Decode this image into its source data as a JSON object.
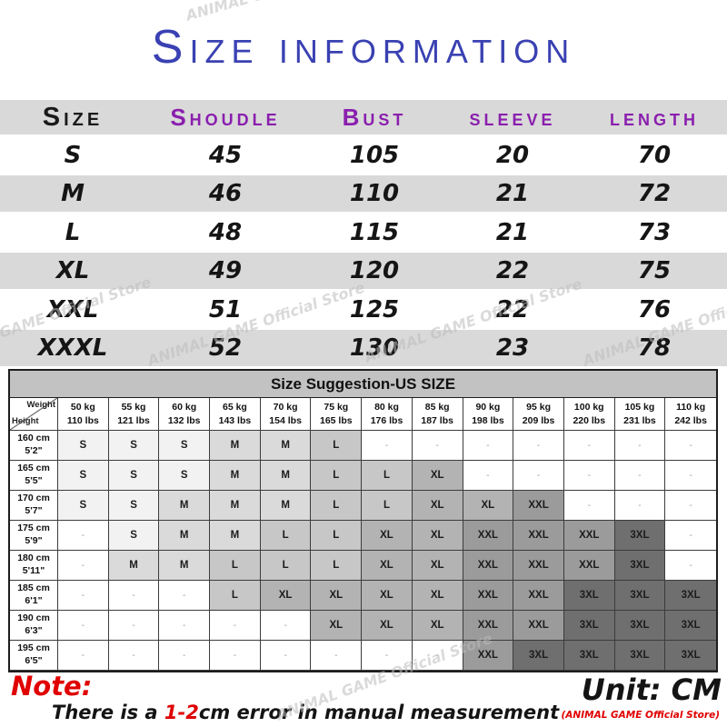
{
  "title": "Size information",
  "watermark_text": "ANIMAL GAME Official Store",
  "colors": {
    "title_blue": "#3a41b2",
    "header_purple": "#8a1fae",
    "note_red": "#e00000",
    "band_gray": "#d9d9d9",
    "size_shades": {
      "S": "#f2f2f2",
      "M": "#dadada",
      "L": "#c7c7c7",
      "XL": "#b3b3b3",
      "XXL": "#9b9b9b",
      "3XL": "#6f6f6f"
    }
  },
  "size_table": {
    "headers": [
      "Size",
      "Shoudle",
      "Bust",
      "sleeve",
      "length"
    ],
    "rows": [
      {
        "size": "S",
        "values": [
          "45",
          "105",
          "20",
          "70"
        ]
      },
      {
        "size": "M",
        "values": [
          "46",
          "110",
          "21",
          "72"
        ]
      },
      {
        "size": "L",
        "values": [
          "48",
          "115",
          "21",
          "73"
        ]
      },
      {
        "size": "XL",
        "values": [
          "49",
          "120",
          "22",
          "75"
        ]
      },
      {
        "size": "XXL",
        "values": [
          "51",
          "125",
          "22",
          "76"
        ]
      },
      {
        "size": "XXXL",
        "values": [
          "52",
          "130",
          "23",
          "78"
        ]
      }
    ]
  },
  "suggestion_table": {
    "title": "Size Suggestion-US SIZE",
    "corner": {
      "top_label": "Weight",
      "bottom_label": "Height"
    },
    "empty_marker": "-",
    "weights": [
      {
        "kg": "50 kg",
        "lbs": "110 lbs"
      },
      {
        "kg": "55 kg",
        "lbs": "121 lbs"
      },
      {
        "kg": "60 kg",
        "lbs": "132 lbs"
      },
      {
        "kg": "65 kg",
        "lbs": "143 lbs"
      },
      {
        "kg": "70 kg",
        "lbs": "154 lbs"
      },
      {
        "kg": "75 kg",
        "lbs": "165 lbs"
      },
      {
        "kg": "80 kg",
        "lbs": "176 lbs"
      },
      {
        "kg": "85 kg",
        "lbs": "187 lbs"
      },
      {
        "kg": "90 kg",
        "lbs": "198 lbs"
      },
      {
        "kg": "95 kg",
        "lbs": "209 lbs"
      },
      {
        "kg": "100 kg",
        "lbs": "220 lbs"
      },
      {
        "kg": "105 kg",
        "lbs": "231 lbs"
      },
      {
        "kg": "110 kg",
        "lbs": "242 lbs"
      }
    ],
    "rows": [
      {
        "height_cm": "160 cm",
        "height_ft": "5'2\"",
        "cells": [
          "S",
          "S",
          "S",
          "M",
          "M",
          "L",
          "",
          "",
          "",
          "",
          "",
          "",
          ""
        ]
      },
      {
        "height_cm": "165 cm",
        "height_ft": "5'5\"",
        "cells": [
          "S",
          "S",
          "S",
          "M",
          "M",
          "L",
          "L",
          "XL",
          "",
          "",
          "",
          "",
          ""
        ]
      },
      {
        "height_cm": "170 cm",
        "height_ft": "5'7\"",
        "cells": [
          "S",
          "S",
          "M",
          "M",
          "M",
          "L",
          "L",
          "XL",
          "XL",
          "XXL",
          "",
          "",
          ""
        ]
      },
      {
        "height_cm": "175 cm",
        "height_ft": "5'9\"",
        "cells": [
          "",
          "S",
          "M",
          "M",
          "L",
          "L",
          "XL",
          "XL",
          "XXL",
          "XXL",
          "XXL",
          "3XL",
          ""
        ]
      },
      {
        "height_cm": "180 cm",
        "height_ft": "5'11\"",
        "cells": [
          "",
          "M",
          "M",
          "L",
          "L",
          "L",
          "XL",
          "XL",
          "XXL",
          "XXL",
          "XXL",
          "3XL",
          ""
        ]
      },
      {
        "height_cm": "185 cm",
        "height_ft": "6'1\"",
        "cells": [
          "",
          "",
          "",
          "L",
          "XL",
          "XL",
          "XL",
          "XL",
          "XXL",
          "XXL",
          "3XL",
          "3XL",
          "3XL"
        ]
      },
      {
        "height_cm": "190 cm",
        "height_ft": "6'3\"",
        "cells": [
          "",
          "",
          "",
          "",
          "",
          "XL",
          "XL",
          "XL",
          "XXL",
          "XXL",
          "3XL",
          "3XL",
          "3XL"
        ]
      },
      {
        "height_cm": "195 cm",
        "height_ft": "6'5\"",
        "cells": [
          "",
          "",
          "",
          "",
          "",
          "",
          "",
          "",
          "XXL",
          "3XL",
          "3XL",
          "3XL",
          "3XL"
        ]
      }
    ]
  },
  "footer": {
    "note_label": "Note:",
    "note_pre": "There is a ",
    "note_highlight": "1-2",
    "note_post": "cm error in manual measurement",
    "unit": "Unit: CM",
    "store": "(ANIMAL GAME Official Store)"
  }
}
